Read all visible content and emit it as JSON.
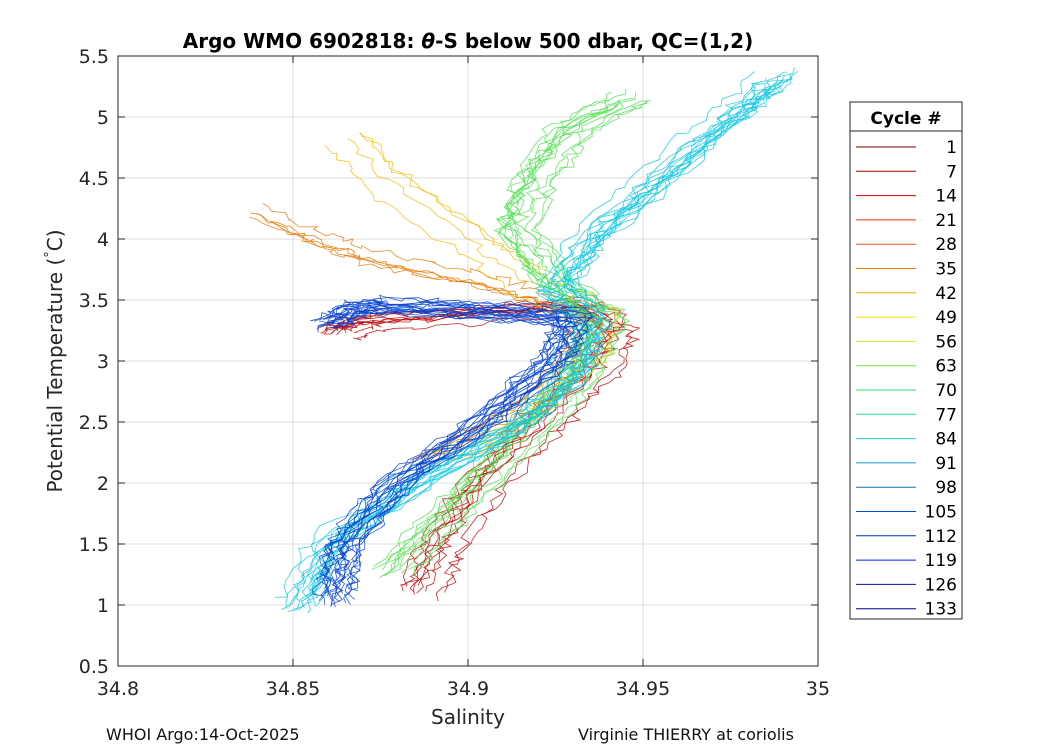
{
  "chart_data": {
    "type": "line",
    "title_prefix": "Argo WMO 6902818: ",
    "title_symbol": "θ",
    "title_suffix": "-S below 500 dbar,  QC=(1,2)",
    "xlabel": "Salinity",
    "ylabel": "Potential Temperature (",
    "ylabel_degree": "°",
    "ylabel_unit": "C)",
    "xlim": [
      34.8,
      35.0
    ],
    "ylim": [
      0.5,
      5.5
    ],
    "xticks": [
      "34.8",
      "34.85",
      "34.9",
      "34.95",
      "35"
    ],
    "xtick_values": [
      34.8,
      34.85,
      34.9,
      34.95,
      35.0
    ],
    "yticks": [
      "0.5",
      "1",
      "1.5",
      "2",
      "2.5",
      "3",
      "3.5",
      "4",
      "4.5",
      "5",
      "5.5"
    ],
    "ytick_values": [
      0.5,
      1.0,
      1.5,
      2.0,
      2.5,
      3.0,
      3.5,
      4.0,
      4.5,
      5.0,
      5.5
    ],
    "grid": true,
    "colormap": "jet",
    "legend": {
      "title": "Cycle #",
      "placement": "outside-right",
      "entries": [
        {
          "label": "1",
          "color": "#800000"
        },
        {
          "label": "7",
          "color": "#a00000"
        },
        {
          "label": "14",
          "color": "#dc0000"
        },
        {
          "label": "21",
          "color": "#f03010"
        },
        {
          "label": "28",
          "color": "#f05020"
        },
        {
          "label": "35",
          "color": "#e88000"
        },
        {
          "label": "42",
          "color": "#f0b000"
        },
        {
          "label": "49",
          "color": "#f0e000"
        },
        {
          "label": "56",
          "color": "#c0f020"
        },
        {
          "label": "63",
          "color": "#70e040"
        },
        {
          "label": "70",
          "color": "#30e070"
        },
        {
          "label": "77",
          "color": "#20e0b0"
        },
        {
          "label": "84",
          "color": "#10d0e0"
        },
        {
          "label": "91",
          "color": "#10a0d0"
        },
        {
          "label": "98",
          "color": "#1070a0"
        },
        {
          "label": "105",
          "color": "#0050e0"
        },
        {
          "label": "112",
          "color": "#0030c0"
        },
        {
          "label": "119",
          "color": "#0020e0"
        },
        {
          "label": "126",
          "color": "#0010a0"
        },
        {
          "label": "133",
          "color": "#000080"
        }
      ]
    },
    "profile_groups": [
      {
        "cycles": "1-21",
        "color": "#c00000",
        "count": 10,
        "path": [
          [
            34.887,
            1.1
          ],
          [
            34.893,
            1.5
          ],
          [
            34.905,
            2.0
          ],
          [
            34.922,
            2.5
          ],
          [
            34.936,
            2.9
          ],
          [
            34.942,
            3.25
          ],
          [
            34.935,
            3.45
          ],
          [
            34.905,
            3.38
          ],
          [
            34.87,
            3.3
          ],
          [
            34.862,
            3.22
          ]
        ]
      },
      {
        "cycles": "28-35",
        "color": "#e87800",
        "count": 5,
        "path": [
          [
            34.89,
            2.2
          ],
          [
            34.915,
            2.6
          ],
          [
            34.93,
            3.0
          ],
          [
            34.935,
            3.4
          ],
          [
            34.92,
            3.55
          ],
          [
            34.9,
            3.7
          ],
          [
            34.875,
            3.85
          ],
          [
            34.86,
            4.0
          ],
          [
            34.84,
            4.25
          ]
        ]
      },
      {
        "cycles": "42-49",
        "color": "#f0c000",
        "count": 4,
        "path": [
          [
            34.9,
            2.2
          ],
          [
            34.92,
            2.6
          ],
          [
            34.935,
            3.0
          ],
          [
            34.938,
            3.35
          ],
          [
            34.92,
            3.6
          ],
          [
            34.9,
            4.0
          ],
          [
            34.875,
            4.5
          ],
          [
            34.865,
            4.85
          ]
        ]
      },
      {
        "cycles": "56-70",
        "color": "#50e050",
        "count": 12,
        "path": [
          [
            34.88,
            1.3
          ],
          [
            34.9,
            1.9
          ],
          [
            34.92,
            2.5
          ],
          [
            34.935,
            3.0
          ],
          [
            34.94,
            3.4
          ],
          [
            34.925,
            3.7
          ],
          [
            34.915,
            4.1
          ],
          [
            34.92,
            4.5
          ],
          [
            34.93,
            4.9
          ],
          [
            34.95,
            5.2
          ]
        ]
      },
      {
        "cycles": "77-91",
        "color": "#10c8e0",
        "count": 16,
        "path": [
          [
            34.852,
            1.0
          ],
          [
            34.86,
            1.5
          ],
          [
            34.885,
            2.0
          ],
          [
            34.915,
            2.5
          ],
          [
            34.93,
            2.9
          ],
          [
            34.935,
            3.3
          ],
          [
            34.925,
            3.6
          ],
          [
            34.935,
            4.0
          ],
          [
            34.955,
            4.5
          ],
          [
            34.975,
            5.0
          ],
          [
            34.99,
            5.35
          ]
        ]
      },
      {
        "cycles": "98-133",
        "color": "#0040d0",
        "count": 18,
        "path": [
          [
            34.862,
            1.05
          ],
          [
            34.865,
            1.5
          ],
          [
            34.88,
            2.0
          ],
          [
            34.905,
            2.5
          ],
          [
            34.925,
            3.0
          ],
          [
            34.93,
            3.35
          ],
          [
            34.9,
            3.42
          ],
          [
            34.87,
            3.45
          ],
          [
            34.86,
            3.3
          ]
        ]
      }
    ]
  },
  "footer": {
    "left": "WHOI Argo:14-Oct-2025",
    "right": "Virginie THIERRY at coriolis"
  }
}
